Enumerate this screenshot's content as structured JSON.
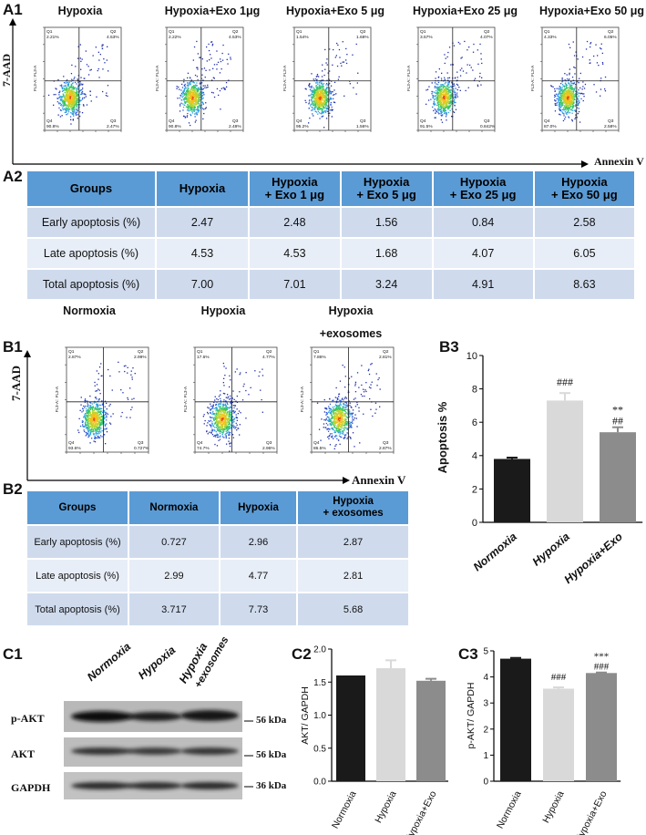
{
  "labels": {
    "a1": "A1",
    "a2": "A2",
    "b1": "B1",
    "b2": "B2",
    "b3": "B3",
    "c1": "C1",
    "c2": "C2",
    "c3": "C3"
  },
  "axes": {
    "y": "7-AAD",
    "x": "Annexin V",
    "plot_y": "FL3-A:: FL3-A"
  },
  "a1_plots": [
    {
      "title": "Hypoxia",
      "q1": "2.21%",
      "q2": "4.53%",
      "q3": "2.47%",
      "q4": "90.8%"
    },
    {
      "title": "Hypoxia+Exo 1μg",
      "q1": "2.22%",
      "q2": "4.53%",
      "q3": "2.48%",
      "q4": "90.8%"
    },
    {
      "title": "Hypoxia+Exo 5 μg",
      "q1": "1.54%",
      "q2": "1.68%",
      "q3": "1.56%",
      "q4": "95.2%"
    },
    {
      "title": "Hypoxia+Exo 25 μg",
      "q1": "3.57%",
      "q2": "4.07%",
      "q3": "0.842%",
      "q4": "91.5%"
    },
    {
      "title": "Hypoxia+Exo 50 μg",
      "q1": "4.33%",
      "q2": "6.05%",
      "q3": "2.58%",
      "q4": "87.0%"
    }
  ],
  "a2_table": {
    "headers": [
      "Groups",
      "Hypoxia",
      "Hypoxia\n+ Exo 1 μg",
      "Hypoxia\n+ Exo 5 μg",
      "Hypoxia\n+ Exo 25 μg",
      "Hypoxia\n+ Exo 50 μg"
    ],
    "rows": [
      [
        "Early apoptosis (%)",
        "2.47",
        "2.48",
        "1.56",
        "0.84",
        "2.58"
      ],
      [
        "Late apoptosis (%)",
        "4.53",
        "4.53",
        "1.68",
        "4.07",
        "6.05"
      ],
      [
        "Total apoptosis (%)",
        "7.00",
        "7.01",
        "3.24",
        "4.91",
        "8.63"
      ]
    ]
  },
  "b1_titles": {
    "normoxia": "Normoxia",
    "hypoxia": "Hypoxia",
    "hypoxia_exo_line1": "Hypoxia",
    "hypoxia_exo_line2": "+exosomes"
  },
  "b1_plots": [
    {
      "q1": "2.87%",
      "q2": "2.99%",
      "q3": "0.727%",
      "q4": "93.6%"
    },
    {
      "q1": "17.6%",
      "q2": "4.77%",
      "q3": "2.96%",
      "q4": "74.7%"
    },
    {
      "q1": "7.86%",
      "q2": "2.81%",
      "q3": "2.87%",
      "q4": "86.5%"
    }
  ],
  "b2_table": {
    "headers": [
      "Groups",
      "Normoxia",
      "Hypoxia",
      "Hypoxia\n+ exosomes"
    ],
    "rows": [
      [
        "Early apoptosis (%)",
        "0.727",
        "2.96",
        "2.87"
      ],
      [
        "Late apoptosis (%)",
        "2.99",
        "4.77",
        "2.81"
      ],
      [
        "Total apoptosis (%)",
        "3.717",
        "7.73",
        "5.68"
      ]
    ]
  },
  "wb": {
    "columns": [
      "Normoxia",
      "Hypoxia",
      "Hypoxia",
      "+exosomes"
    ],
    "rows": [
      "p-AKT",
      "AKT",
      "GAPDH"
    ],
    "kda": [
      "56 kDa",
      "56 kDa",
      "36 kDa"
    ]
  },
  "chart_data": [
    {
      "id": "B3",
      "type": "bar",
      "categories": [
        "Normoxia",
        "Hypoxia",
        "Hypoxia+Exo"
      ],
      "values": [
        3.8,
        7.3,
        5.4
      ],
      "errors": [
        0.08,
        0.45,
        0.3
      ],
      "colors": [
        "#1a1a1a",
        "#d9d9d9",
        "#8c8c8c"
      ],
      "annotations": [
        [
          "",
          ""
        ],
        [
          "###",
          ""
        ],
        [
          "**",
          "##"
        ]
      ],
      "ylabel": "Apoptosis %",
      "ylim": [
        0,
        10
      ],
      "yticks": [
        "0",
        "2",
        "4",
        "6",
        "8",
        "10"
      ]
    },
    {
      "id": "C2",
      "type": "bar",
      "categories": [
        "Normoxia",
        "Hypoxia",
        "Hypoxia+Exo"
      ],
      "values": [
        1.6,
        1.71,
        1.52
      ],
      "errors": [
        0.0,
        0.12,
        0.03
      ],
      "colors": [
        "#1a1a1a",
        "#d9d9d9",
        "#8c8c8c"
      ],
      "ylabel": "AKT/ GAPDH",
      "ylim": [
        0,
        2.0
      ],
      "yticks": [
        "0.0",
        "0.5",
        "1.0",
        "1.5",
        "2.0"
      ]
    },
    {
      "id": "C3",
      "type": "bar",
      "categories": [
        "Normoxia",
        "Hypoxia",
        "Hypoxia+Exo"
      ],
      "values": [
        4.7,
        3.55,
        4.15
      ],
      "errors": [
        0.03,
        0.05,
        0.02
      ],
      "colors": [
        "#1a1a1a",
        "#d9d9d9",
        "#8c8c8c"
      ],
      "annotations": [
        [
          "",
          ""
        ],
        [
          "###",
          ""
        ],
        [
          "***",
          "###"
        ]
      ],
      "ylabel": "p-AKT/ GAPDH",
      "ylim": [
        0,
        5
      ],
      "yticks": [
        "0",
        "1",
        "2",
        "3",
        "4",
        "5"
      ]
    }
  ]
}
